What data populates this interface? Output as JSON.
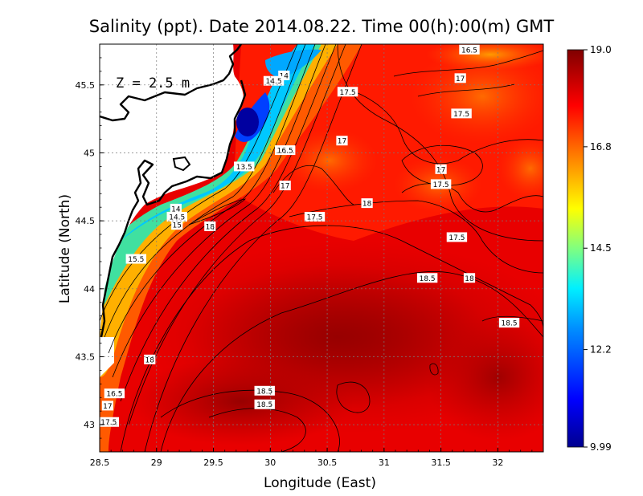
{
  "title": "Salinity (ppt). Date 2014.08.22. Time 00(h):00(m) GMT",
  "annotation": "Z = 2.5 m",
  "chart_data": {
    "type": "heatmap",
    "title": "Salinity (ppt). Date 2014.08.22. Time 00(h):00(m) GMT",
    "xlabel": "Longitude (East)",
    "ylabel": "Latitude (North)",
    "xlim": [
      28.5,
      32.4
    ],
    "ylim": [
      42.8,
      45.8
    ],
    "x_ticks": [
      {
        "value": 28.5,
        "label": "28.5"
      },
      {
        "value": 29,
        "label": "29"
      },
      {
        "value": 29.5,
        "label": "29.5"
      },
      {
        "value": 30,
        "label": "30"
      },
      {
        "value": 30.5,
        "label": "30.5"
      },
      {
        "value": 31,
        "label": "31"
      },
      {
        "value": 31.5,
        "label": "31.5"
      },
      {
        "value": 32,
        "label": "32"
      }
    ],
    "y_ticks": [
      {
        "value": 43,
        "label": "43"
      },
      {
        "value": 43.5,
        "label": "43.5"
      },
      {
        "value": 44,
        "label": "44"
      },
      {
        "value": 44.5,
        "label": "44.5"
      },
      {
        "value": 45,
        "label": "45"
      },
      {
        "value": 45.5,
        "label": "45.5"
      }
    ],
    "grid": true,
    "colorbar": {
      "min": 9.99,
      "max": 19.0,
      "ticks": [
        {
          "value": 19.0,
          "label": "19.0"
        },
        {
          "value": 16.8,
          "label": "16.8"
        },
        {
          "value": 14.5,
          "label": "14.5"
        },
        {
          "value": 12.2,
          "label": "12.2"
        },
        {
          "value": 9.99,
          "label": "9.99"
        }
      ],
      "colors": [
        "#00008f",
        "#0000ff",
        "#0080ff",
        "#00ffff",
        "#80ff80",
        "#ffff00",
        "#ff8000",
        "#ff0000",
        "#800000"
      ]
    },
    "contour_labels": [
      {
        "label": "16.5",
        "lon": 31.75,
        "lat": 45.76
      },
      {
        "label": "17",
        "lon": 31.67,
        "lat": 45.55
      },
      {
        "label": "17.5",
        "lon": 31.68,
        "lat": 45.29
      },
      {
        "label": "17.5",
        "lon": 30.68,
        "lat": 45.45
      },
      {
        "label": "17",
        "lon": 30.63,
        "lat": 45.09
      },
      {
        "label": "16.5",
        "lon": 30.13,
        "lat": 45.02
      },
      {
        "label": "14",
        "lon": 30.12,
        "lat": 45.57
      },
      {
        "label": "14.5",
        "lon": 30.03,
        "lat": 45.53
      },
      {
        "label": "13.5",
        "lon": 29.77,
        "lat": 44.9
      },
      {
        "label": "17",
        "lon": 30.13,
        "lat": 44.76
      },
      {
        "label": "17",
        "lon": 31.5,
        "lat": 44.88
      },
      {
        "label": "17.5",
        "lon": 31.5,
        "lat": 44.77
      },
      {
        "label": "18",
        "lon": 30.85,
        "lat": 44.63
      },
      {
        "label": "17.5",
        "lon": 30.39,
        "lat": 44.53
      },
      {
        "label": "18",
        "lon": 29.47,
        "lat": 44.46
      },
      {
        "label": "14",
        "lon": 29.17,
        "lat": 44.59
      },
      {
        "label": "14.5",
        "lon": 29.18,
        "lat": 44.53
      },
      {
        "label": "15",
        "lon": 29.18,
        "lat": 44.47
      },
      {
        "label": "15.5",
        "lon": 28.82,
        "lat": 44.22
      },
      {
        "label": "17.5",
        "lon": 31.64,
        "lat": 44.38
      },
      {
        "label": "18.5",
        "lon": 31.38,
        "lat": 44.08
      },
      {
        "label": "18",
        "lon": 31.75,
        "lat": 44.08
      },
      {
        "label": "18.5",
        "lon": 32.1,
        "lat": 43.75
      },
      {
        "label": "18",
        "lon": 28.94,
        "lat": 43.48
      },
      {
        "label": "16.5",
        "lon": 28.63,
        "lat": 43.23
      },
      {
        "label": "17",
        "lon": 28.57,
        "lat": 43.14
      },
      {
        "label": "17.5",
        "lon": 28.58,
        "lat": 43.02
      },
      {
        "label": "18.5",
        "lon": 29.95,
        "lat": 43.25
      },
      {
        "label": "18.5",
        "lon": 29.95,
        "lat": 43.15
      }
    ]
  }
}
